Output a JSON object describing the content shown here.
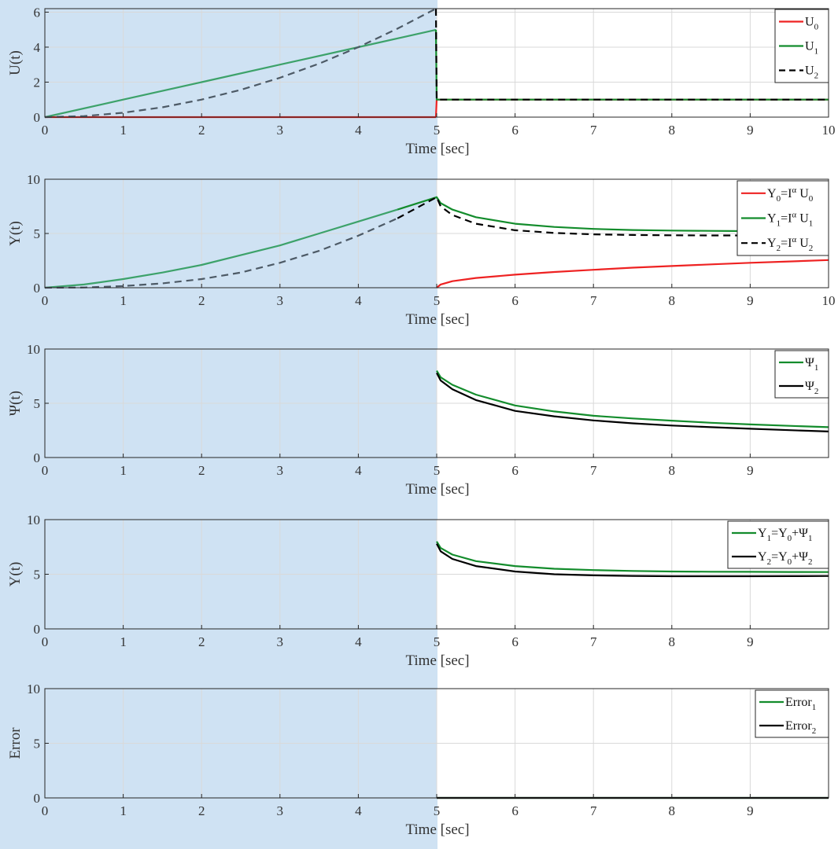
{
  "colors": {
    "shade": "#cfe2f3",
    "red": "#ee2222",
    "green": "#138c2c",
    "green_light": "#3da26a",
    "black": "#000000",
    "dashed_gray": "#4d5a66",
    "grid": "#d9d9d9",
    "axis": "#262626"
  },
  "chart_data": [
    {
      "type": "line",
      "ylabel": "U(t)",
      "xlabel": "Time [sec]",
      "xlim": [
        0,
        10
      ],
      "ylim": [
        0,
        6.2
      ],
      "xticks": [
        0,
        1,
        2,
        3,
        4,
        5,
        6,
        7,
        8,
        9,
        10
      ],
      "yticks": [
        0,
        2,
        4,
        6
      ],
      "grid": true,
      "legend_position": "top-right",
      "shaded_region": [
        0,
        5
      ],
      "series": [
        {
          "name": "U",
          "sub": "0",
          "sup": "",
          "tail": "",
          "color": "red",
          "color_shaded": "red",
          "dash": false,
          "x": [
            0,
            4.99,
            5.0,
            10
          ],
          "y": [
            0,
            0,
            1,
            1
          ]
        },
        {
          "name": "U",
          "sub": "1",
          "sup": "",
          "tail": "",
          "color": "green",
          "color_shaded": "green_light",
          "dash": false,
          "x": [
            0,
            1,
            2,
            3,
            4,
            4.99,
            5.0,
            10
          ],
          "y": [
            0,
            1,
            2,
            3,
            4,
            4.99,
            1,
            1
          ]
        },
        {
          "name": "U",
          "sub": "2",
          "sup": "",
          "tail": "",
          "color": "black",
          "color_shaded": "dashed_gray",
          "dash": true,
          "x": [
            0,
            0.5,
            1,
            1.5,
            2,
            2.5,
            3,
            3.5,
            4,
            4.5,
            4.99,
            5.0,
            10
          ],
          "y": [
            0,
            0.06,
            0.25,
            0.56,
            1.0,
            1.56,
            2.25,
            3.06,
            4.0,
            5.06,
            6.2,
            1,
            1
          ]
        }
      ]
    },
    {
      "type": "line",
      "ylabel": "Y(t)",
      "xlabel": "Time [sec]",
      "xlim": [
        0,
        10
      ],
      "ylim": [
        0,
        10
      ],
      "xticks": [
        0,
        1,
        2,
        3,
        4,
        5,
        6,
        7,
        8,
        9,
        10
      ],
      "yticks": [
        0,
        5,
        10
      ],
      "grid": true,
      "legend_position": "top-right",
      "shaded_region": [
        0,
        5
      ],
      "series": [
        {
          "name": "Y",
          "sub": "0",
          "sup": "α",
          "tail": "U",
          "tail_sub": "0",
          "mid": "=I",
          "color": "red",
          "color_shaded": "red",
          "dash": false,
          "x": [
            5.0,
            5.05,
            5.2,
            5.5,
            6,
            6.5,
            7,
            7.5,
            8,
            8.5,
            9,
            9.5,
            10
          ],
          "y": [
            0,
            0.3,
            0.6,
            0.9,
            1.2,
            1.45,
            1.65,
            1.85,
            2.0,
            2.15,
            2.3,
            2.42,
            2.55
          ]
        },
        {
          "name": "Y",
          "sub": "1",
          "sup": "α",
          "tail": "U",
          "tail_sub": "1",
          "mid": "=I",
          "color": "green",
          "color_shaded": "green_light",
          "dash": false,
          "x": [
            0,
            0.5,
            1,
            1.5,
            2,
            2.5,
            3,
            3.5,
            4,
            4.5,
            5.0,
            5.05,
            5.2,
            5.5,
            6,
            6.5,
            7,
            7.5,
            8,
            8.5,
            9,
            9.5,
            10
          ],
          "y": [
            0,
            0.3,
            0.8,
            1.4,
            2.1,
            3.0,
            3.9,
            5.0,
            6.1,
            7.2,
            8.35,
            7.8,
            7.2,
            6.5,
            5.9,
            5.6,
            5.42,
            5.32,
            5.27,
            5.24,
            5.22,
            5.21,
            5.2
          ]
        },
        {
          "name": "Y",
          "sub": "2",
          "sup": "α",
          "tail": "U",
          "tail_sub": "2",
          "mid": "=I",
          "color": "black",
          "color_shaded": "dashed_gray",
          "dash": true,
          "x": [
            0,
            0.5,
            1,
            1.5,
            2,
            2.5,
            3,
            3.5,
            4,
            4.5,
            5.0,
            5.05,
            5.2,
            5.5,
            6,
            6.5,
            7,
            7.5,
            8,
            8.5,
            9,
            9.5,
            10
          ],
          "y": [
            0,
            0.02,
            0.15,
            0.4,
            0.8,
            1.4,
            2.3,
            3.4,
            4.8,
            6.4,
            8.35,
            7.5,
            6.7,
            5.9,
            5.3,
            5.05,
            4.92,
            4.86,
            4.83,
            4.82,
            4.82,
            4.82,
            4.82
          ]
        }
      ]
    },
    {
      "type": "line",
      "ylabel": "Ψ(t)",
      "xlabel": "Time [sec]",
      "xlim": [
        0,
        10
      ],
      "ylim": [
        0,
        10
      ],
      "xticks": [
        0,
        1,
        2,
        3,
        4,
        5,
        6,
        7,
        8,
        9
      ],
      "yticks": [
        0,
        5,
        10
      ],
      "grid": true,
      "legend_position": "top-right",
      "shaded_region": [
        0,
        5
      ],
      "series": [
        {
          "name": "Ψ",
          "sub": "1",
          "sup": "",
          "tail": "",
          "color": "green",
          "color_shaded": "green_light",
          "dash": false,
          "x": [
            5.0,
            5.05,
            5.2,
            5.5,
            6,
            6.5,
            7,
            7.5,
            8,
            8.5,
            9,
            9.5,
            10
          ],
          "y": [
            8.0,
            7.4,
            6.7,
            5.8,
            4.8,
            4.25,
            3.85,
            3.6,
            3.4,
            3.2,
            3.05,
            2.92,
            2.8
          ]
        },
        {
          "name": "Ψ",
          "sub": "2",
          "sup": "",
          "tail": "",
          "color": "black",
          "color_shaded": "black",
          "dash": false,
          "x": [
            5.0,
            5.05,
            5.2,
            5.5,
            6,
            6.5,
            7,
            7.5,
            8,
            8.5,
            9,
            9.5,
            10
          ],
          "y": [
            7.8,
            7.1,
            6.3,
            5.3,
            4.3,
            3.8,
            3.42,
            3.15,
            2.95,
            2.8,
            2.65,
            2.52,
            2.4
          ]
        }
      ]
    },
    {
      "type": "line",
      "ylabel": "Y(t)",
      "xlabel": "Time [sec]",
      "xlim": [
        0,
        10
      ],
      "ylim": [
        0,
        10
      ],
      "xticks": [
        0,
        1,
        2,
        3,
        4,
        5,
        6,
        7,
        8,
        9
      ],
      "yticks": [
        0,
        5,
        10
      ],
      "grid": true,
      "legend_position": "top-right",
      "shaded_region": [
        0,
        5
      ],
      "series": [
        {
          "name": "Y",
          "sub": "1",
          "sup": "",
          "tail": "",
          "mid": "=Y",
          "mid_sub": "0",
          "plus": "+Ψ",
          "plus_sub": "1",
          "color": "green",
          "color_shaded": "green_light",
          "dash": false,
          "x": [
            5.0,
            5.05,
            5.2,
            5.5,
            6,
            6.5,
            7,
            7.5,
            8,
            8.5,
            9,
            9.5,
            10
          ],
          "y": [
            8.0,
            7.4,
            6.8,
            6.2,
            5.75,
            5.5,
            5.38,
            5.3,
            5.25,
            5.23,
            5.22,
            5.21,
            5.2
          ]
        },
        {
          "name": "Y",
          "sub": "2",
          "sup": "",
          "tail": "",
          "mid": "=Y",
          "mid_sub": "0",
          "plus": "+Ψ",
          "plus_sub": "2",
          "color": "black",
          "color_shaded": "black",
          "dash": false,
          "x": [
            5.0,
            5.05,
            5.2,
            5.5,
            6,
            6.5,
            7,
            7.5,
            8,
            8.5,
            9,
            9.5,
            10
          ],
          "y": [
            7.8,
            7.1,
            6.4,
            5.75,
            5.25,
            5.0,
            4.9,
            4.85,
            4.82,
            4.82,
            4.82,
            4.83,
            4.84
          ]
        }
      ]
    },
    {
      "type": "line",
      "ylabel": "Error",
      "xlabel": "Time [sec]",
      "xlim": [
        0,
        10
      ],
      "ylim": [
        0,
        10
      ],
      "xticks": [
        0,
        1,
        2,
        3,
        4,
        5,
        6,
        7,
        8,
        9
      ],
      "yticks": [
        0,
        5,
        10
      ],
      "grid": true,
      "legend_position": "top-right",
      "shaded_region": [
        0,
        5
      ],
      "series": [
        {
          "name": "Error",
          "sub": "1",
          "sup": "",
          "tail": "",
          "color": "green",
          "color_shaded": "green_light",
          "dash": false,
          "x": [
            5.0,
            10
          ],
          "y": [
            0,
            0
          ]
        },
        {
          "name": "Error",
          "sub": "2",
          "sup": "",
          "tail": "",
          "color": "black",
          "color_shaded": "black",
          "dash": false,
          "x": [
            5.0,
            10
          ],
          "y": [
            0,
            0
          ]
        }
      ]
    }
  ]
}
